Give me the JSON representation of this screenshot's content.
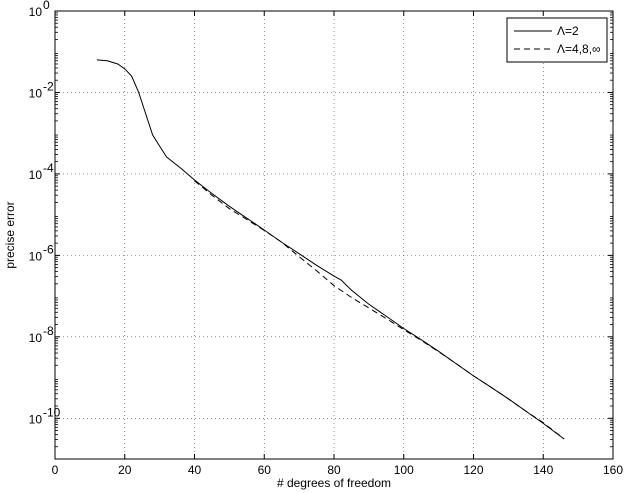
{
  "chart_data": {
    "type": "line",
    "title": "",
    "xlabel": "# degrees of freedom",
    "ylabel": "precise error",
    "xlim": [
      0,
      160
    ],
    "ylim_exp": [
      -11,
      0
    ],
    "y_scale": "log",
    "grid": true,
    "legend_position": "top-right",
    "x_ticks": [
      0,
      20,
      40,
      60,
      80,
      100,
      120,
      140,
      160
    ],
    "y_ticks": [
      {
        "base": "10",
        "exp": "0"
      },
      {
        "base": "10",
        "exp": "-2"
      },
      {
        "base": "10",
        "exp": "-4"
      },
      {
        "base": "10",
        "exp": "-6"
      },
      {
        "base": "10",
        "exp": "-8"
      },
      {
        "base": "10",
        "exp": "-10"
      }
    ],
    "series": [
      {
        "name": "Λ=2",
        "style": "solid",
        "color": "#000000",
        "points": [
          [
            12,
            0.063
          ],
          [
            15,
            0.06
          ],
          [
            18,
            0.05
          ],
          [
            20,
            0.038
          ],
          [
            22,
            0.025
          ],
          [
            24,
            0.01
          ],
          [
            26,
            0.003
          ],
          [
            28,
            0.0009
          ],
          [
            30,
            0.00048
          ],
          [
            32,
            0.00026
          ],
          [
            36,
            0.00014
          ],
          [
            40,
            7.1e-05
          ],
          [
            45,
            3.3e-05
          ],
          [
            50,
            1.6e-05
          ],
          [
            55,
            8.2e-06
          ],
          [
            60,
            4.2e-06
          ],
          [
            65,
            2.1e-06
          ],
          [
            70,
            1.1e-06
          ],
          [
            75,
            5.7e-07
          ],
          [
            80,
            3.1e-07
          ],
          [
            82,
            2.5e-07
          ],
          [
            85,
            1.4e-07
          ],
          [
            90,
            6.3e-08
          ],
          [
            95,
            3.2e-08
          ],
          [
            100,
            1.6e-08
          ],
          [
            105,
            8.5e-09
          ],
          [
            110,
            4.4e-09
          ],
          [
            115,
            2.2e-09
          ],
          [
            120,
            1.1e-09
          ],
          [
            125,
            5.8e-10
          ],
          [
            130,
            3e-10
          ],
          [
            135,
            1.5e-10
          ],
          [
            140,
            7.5e-11
          ],
          [
            143,
            4.8e-11
          ],
          [
            146,
            3.1e-11
          ]
        ]
      },
      {
        "name": "Λ=4,8,∞",
        "style": "dashed",
        "color": "#000000",
        "points": [
          [
            40,
            6.8e-05
          ],
          [
            45,
            3e-05
          ],
          [
            50,
            1.4e-05
          ],
          [
            55,
            7.6e-06
          ],
          [
            60,
            4.1e-06
          ],
          [
            65,
            2.1e-06
          ],
          [
            70,
            9.3e-07
          ],
          [
            75,
            4.2e-07
          ],
          [
            80,
            1.8e-07
          ],
          [
            85,
            9.3e-08
          ],
          [
            90,
            5.1e-08
          ],
          [
            95,
            2.8e-08
          ],
          [
            100,
            1.5e-08
          ],
          [
            105,
            8.2e-09
          ],
          [
            110,
            4.3e-09
          ],
          [
            115,
            2.2e-09
          ],
          [
            120,
            1.1e-09
          ],
          [
            125,
            5.8e-10
          ],
          [
            130,
            3e-10
          ],
          [
            135,
            1.5e-10
          ],
          [
            140,
            7.8e-11
          ],
          [
            143,
            4.9e-11
          ],
          [
            146,
            3.1e-11
          ]
        ]
      }
    ]
  }
}
